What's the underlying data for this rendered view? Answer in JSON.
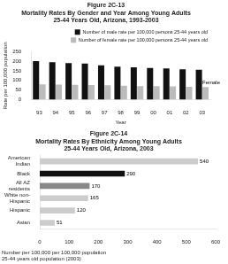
{
  "chart_data": [
    {
      "type": "bar",
      "title": "Figure 2C-13\nMortality Rates By Gender and Year Among Young Adults\n25-44 Years Old, Arizona, 1993-2003",
      "xlabel": "Year",
      "ylabel": "Rate per 100,000 population",
      "categories": [
        "93",
        "94",
        "95",
        "96",
        "97",
        "98",
        "99",
        "00",
        "01",
        "02",
        "03"
      ],
      "series": [
        {
          "name": "Number of male rate per 100,000 persons 25-44 years old",
          "color": "#111111",
          "values": [
            200,
            195,
            190,
            188,
            178,
            172,
            168,
            165,
            162,
            158,
            155
          ]
        },
        {
          "name": "Number of female rate per 100,000 persons 25-44 years old",
          "color": "#bbbbbb",
          "values": [
            80,
            79,
            78,
            76,
            75,
            73,
            71,
            70,
            69,
            67,
            66
          ]
        }
      ],
      "ylim": [
        0,
        250
      ],
      "yticks": [
        0,
        50,
        100,
        150,
        200,
        250
      ],
      "legend": "upper right",
      "grid": false,
      "annotations": [
        "Female"
      ]
    },
    {
      "type": "bar",
      "orientation": "horizontal",
      "title": "Figure 2C-14\nMortality Rates By Ethnicity Among Young Adults\n25-44 Years Old, Arizona, 2003",
      "subtitle": "Number per 100,000 per 100,000 population\n25-44 years old population (2003)",
      "categories": [
        "American\nIndian",
        "Black",
        "All AZ\nresidents",
        "White non-\nHispanic",
        "Hispanic",
        "Asian"
      ],
      "values": [
        540,
        290,
        170,
        165,
        120,
        51
      ],
      "colors": [
        "#cccccc",
        "#111111",
        "#888888",
        "#cccccc",
        "#cccccc",
        "#cccccc"
      ],
      "xlim": [
        0,
        600
      ],
      "xticks": [
        0,
        100,
        200,
        300,
        400,
        500,
        600
      ],
      "data_labels": true,
      "grid": false
    }
  ]
}
